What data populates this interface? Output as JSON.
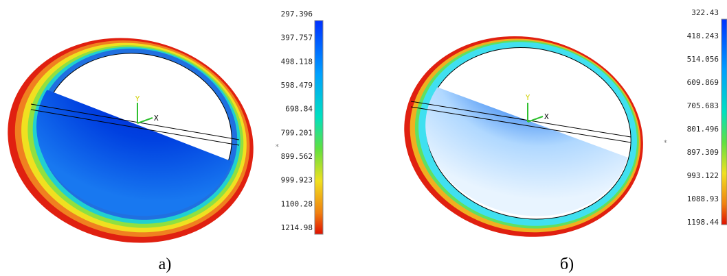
{
  "panels": [
    {
      "legend_labels": [
        "297.396",
        "397.757",
        "498.118",
        "598.479",
        "698.84",
        "799.201",
        "899.562",
        "999.923",
        "1100.28",
        "1214.98"
      ],
      "axis_y": "Y",
      "axis_x": "X",
      "marker": "*",
      "caption": "а)"
    },
    {
      "legend_labels": [
        "322.43",
        "418.243",
        "514.056",
        "609.869",
        "705.683",
        "801.496",
        "897.309",
        "993.122",
        "1088.93",
        "1198.44"
      ],
      "axis_y": "Y",
      "axis_x": "X",
      "marker": "*",
      "caption": "б)"
    }
  ]
}
